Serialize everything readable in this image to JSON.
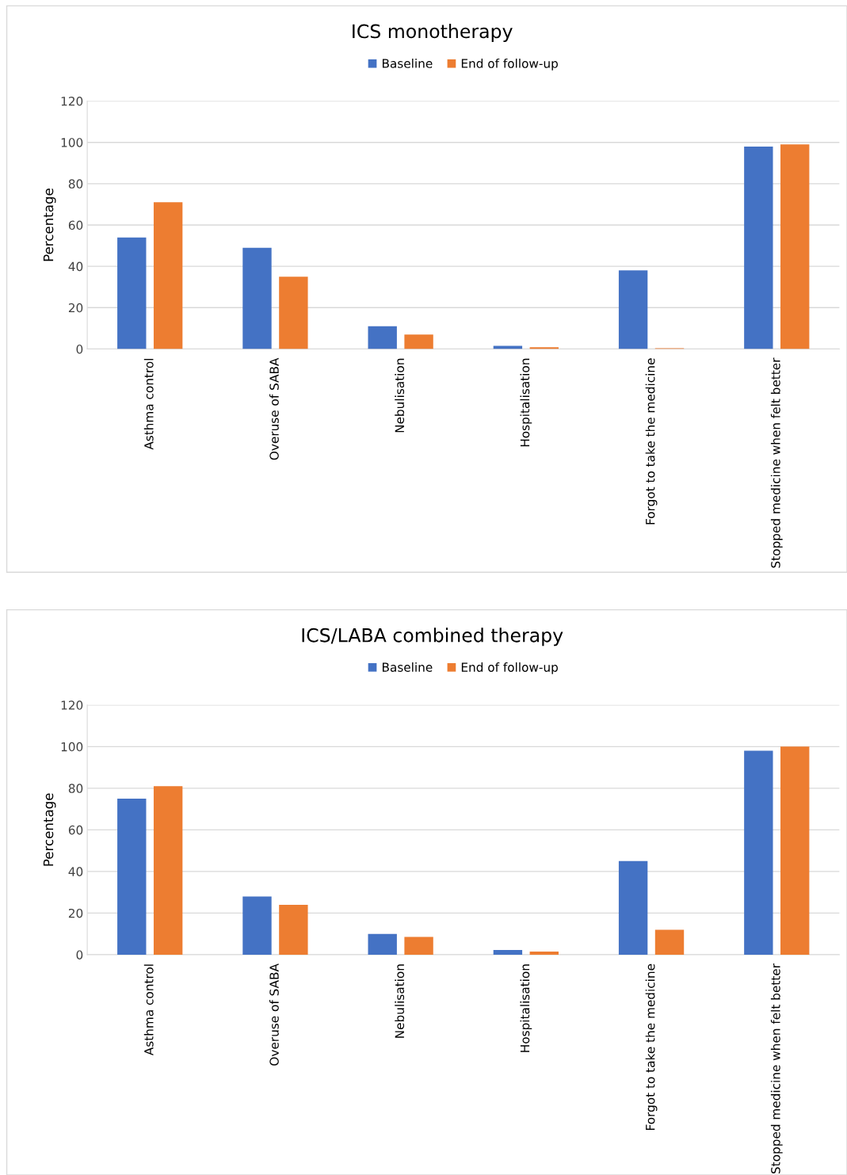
{
  "chart_data": [
    {
      "type": "bar",
      "title": "ICS monotherapy",
      "ylabel": "Percentage",
      "categories": [
        "Asthma control",
        "Overuse of SABA",
        "Nebulisation",
        "Hospitalisation",
        "Forgot to take the medicine",
        "Stopped medicine when felt better"
      ],
      "series": [
        {
          "name": "Baseline",
          "color": "#4472c4",
          "values": [
            54,
            49,
            11,
            1.5,
            38,
            98
          ]
        },
        {
          "name": "End of follow-up",
          "color": "#ed7d31",
          "values": [
            71,
            35,
            7,
            0.8,
            0.4,
            99
          ]
        }
      ],
      "ylim": [
        0,
        120
      ],
      "yticks": [
        0,
        20,
        40,
        60,
        80,
        100,
        120
      ],
      "grid": "y",
      "legend": "top"
    },
    {
      "type": "bar",
      "title": "ICS/LABA combined therapy",
      "ylabel": "Percentage",
      "categories": [
        "Asthma control",
        "Overuse of SABA",
        "Nebulisation",
        "Hospitalisation",
        "Forgot to take the medicine",
        "Stopped medicine when felt better"
      ],
      "series": [
        {
          "name": "Baseline",
          "color": "#4472c4",
          "values": [
            75,
            28,
            10,
            2.3,
            45,
            98
          ]
        },
        {
          "name": "End of follow-up",
          "color": "#ed7d31",
          "values": [
            81,
            24,
            8.5,
            1.5,
            12,
            100
          ]
        }
      ],
      "ylim": [
        0,
        120
      ],
      "yticks": [
        0,
        20,
        40,
        60,
        80,
        100,
        120
      ],
      "grid": "y",
      "legend": "top"
    }
  ]
}
